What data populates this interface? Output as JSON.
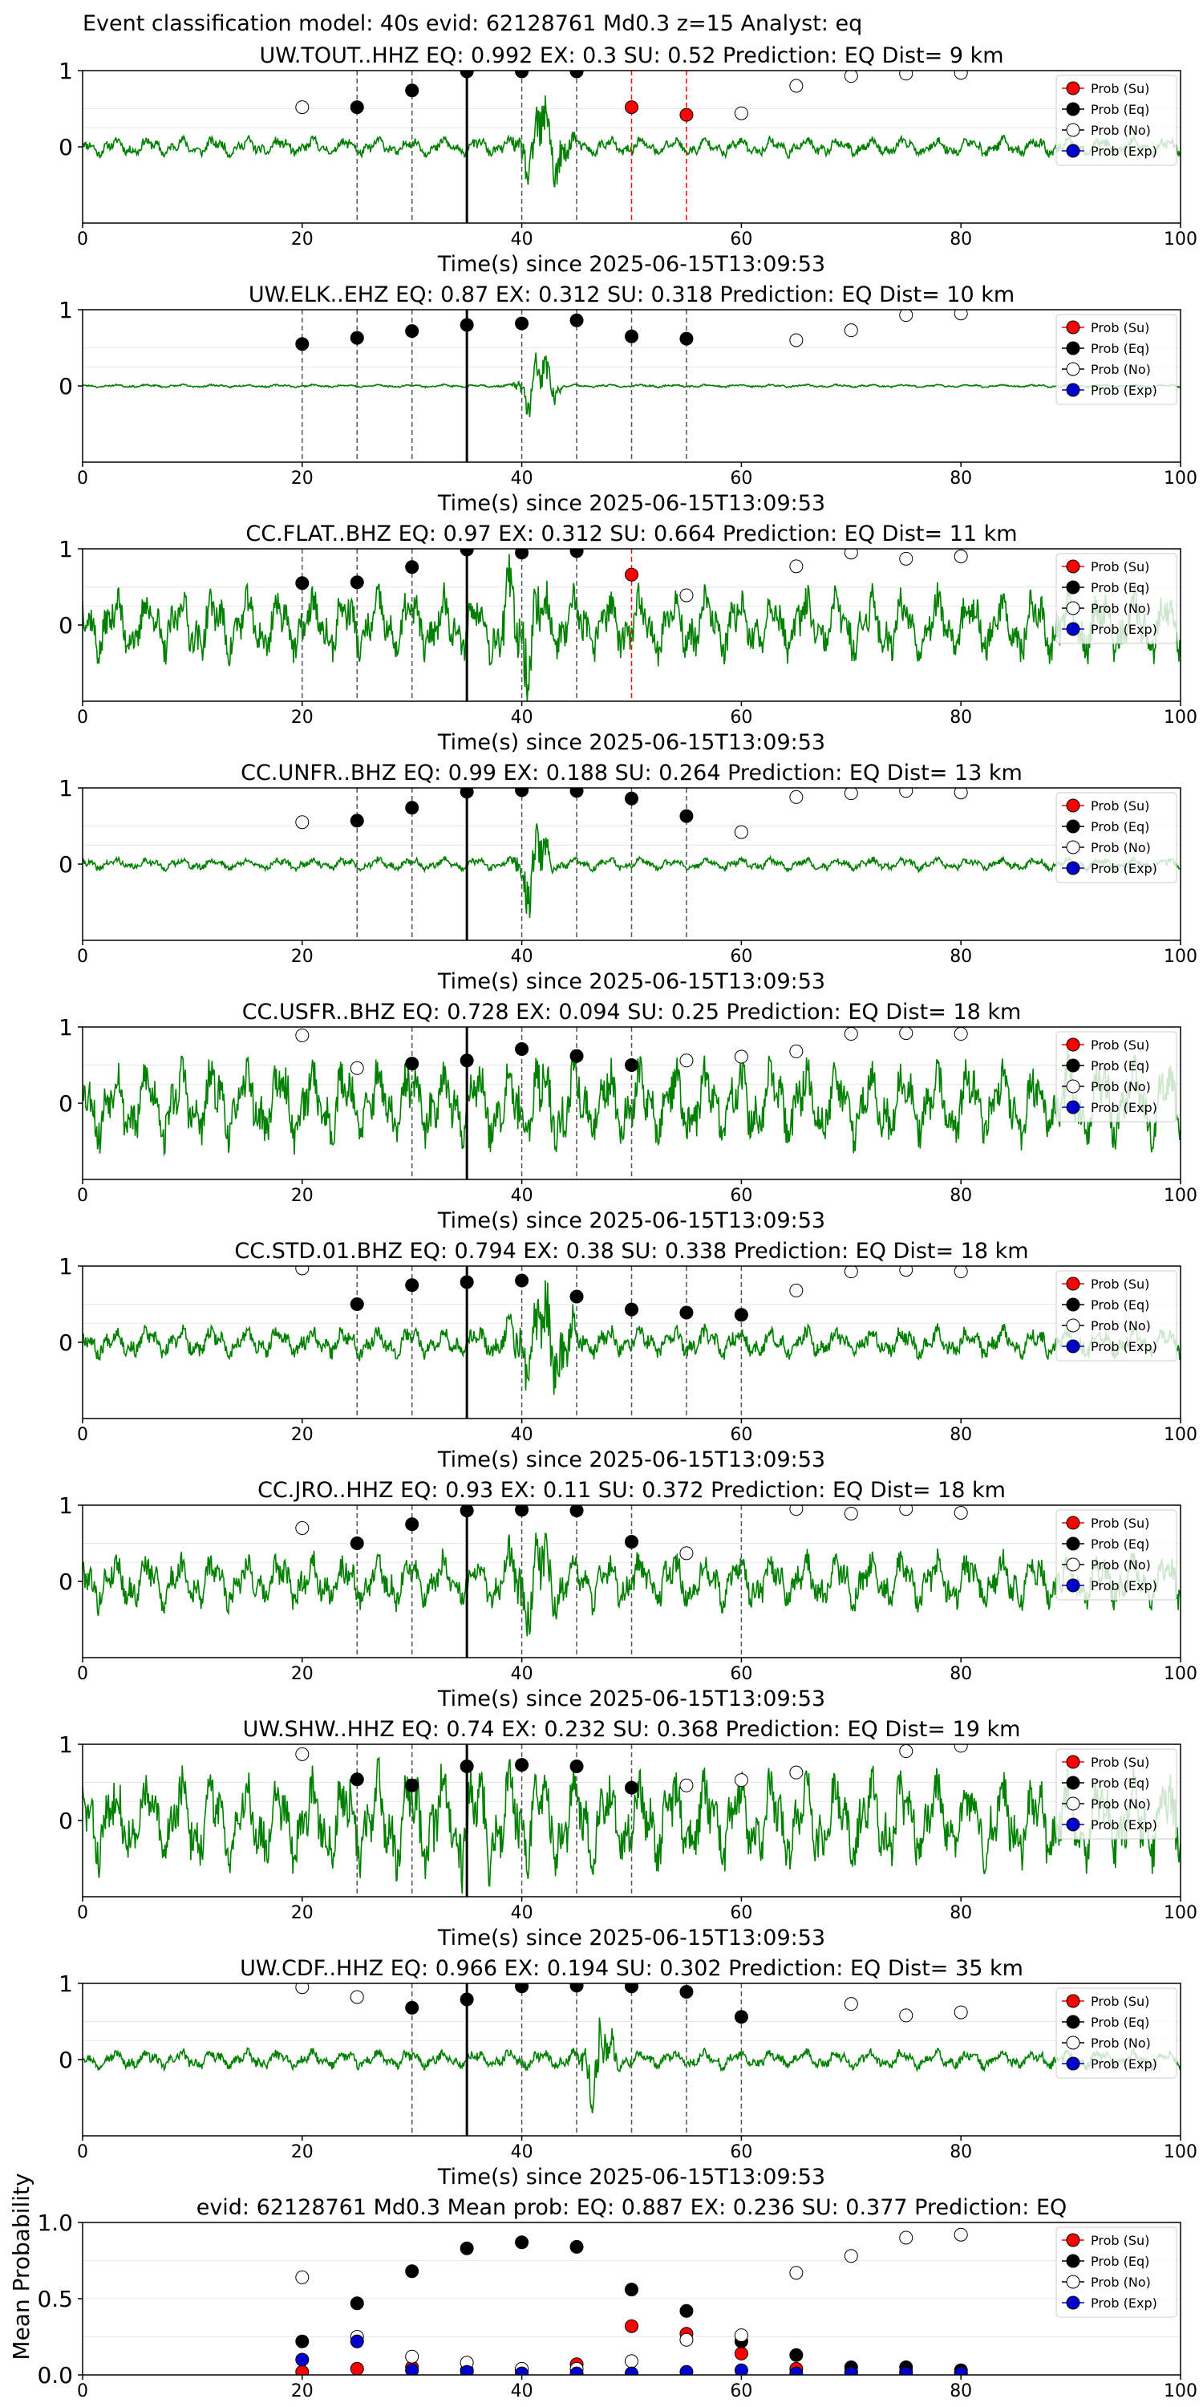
{
  "suptitle": "Event classification model: 40s evid: 62128761 Md0.3 z=15 Analyst: eq",
  "colors": {
    "waveform": "#008000",
    "su": "#ff0000",
    "eq": "#000000",
    "no": "#ffffff",
    "exp": "#0000cc",
    "dashed_gray": "#555555",
    "dashed_red": "#ff0000",
    "pick": "#000000"
  },
  "legend": [
    "Prob (Su)",
    "Prob (Eq)",
    "Prob (No)",
    "Prob (Exp)"
  ],
  "chart_data": [
    {
      "type": "scatter",
      "title": "UW.TOUT..HHZ   EQ: 0.992  EX: 0.3  SU: 0.52   Prediction: EQ    Dist= 9 km",
      "xlabel": "Time(s) since 2025-06-15T13:09:53",
      "xlim": [
        0,
        100
      ],
      "ylim": [
        -1,
        1
      ],
      "xticks": [
        "0",
        "20",
        "40",
        "60",
        "80",
        "100"
      ],
      "yticks": [
        "1",
        "0"
      ],
      "pick_line": 35,
      "vlines_gray": [
        25,
        30,
        40,
        45
      ],
      "vlines_red": [
        50,
        55
      ],
      "waveform": {
        "amp": 0.12,
        "burst_amp": 0.85,
        "burst": [
          39,
          45
        ],
        "seed": 11
      },
      "series": [
        {
          "name": "Prob (Su)",
          "x": [
            50,
            55
          ],
          "y": [
            0.52,
            0.42
          ]
        },
        {
          "name": "Prob (Eq)",
          "x": [
            25,
            30,
            35,
            40,
            45
          ],
          "y": [
            0.52,
            0.74,
            0.99,
            0.99,
            0.99
          ]
        },
        {
          "name": "Prob (No)",
          "x": [
            20,
            60,
            65,
            70,
            75,
            80
          ],
          "y": [
            0.52,
            0.44,
            0.8,
            0.93,
            0.96,
            0.97
          ]
        },
        {
          "name": "Prob (Exp)",
          "x": [],
          "y": []
        }
      ]
    },
    {
      "type": "scatter",
      "title": "UW.ELK..EHZ   EQ: 0.87  EX: 0.312  SU: 0.318   Prediction: EQ    Dist= 10 km",
      "xlabel": "Time(s) since 2025-06-15T13:09:53",
      "xlim": [
        0,
        100
      ],
      "ylim": [
        -1,
        1
      ],
      "xticks": [
        "0",
        "20",
        "40",
        "60",
        "80",
        "100"
      ],
      "yticks": [
        "1",
        "0"
      ],
      "pick_line": 35,
      "vlines_gray": [
        20,
        25,
        30,
        40,
        45,
        50,
        55
      ],
      "vlines_red": [],
      "waveform": {
        "amp": 0.02,
        "burst_amp": 0.6,
        "burst": [
          39,
          44
        ],
        "seed": 23
      },
      "series": [
        {
          "name": "Prob (Su)",
          "x": [],
          "y": []
        },
        {
          "name": "Prob (Eq)",
          "x": [
            20,
            25,
            30,
            35,
            40,
            45,
            50,
            55
          ],
          "y": [
            0.55,
            0.63,
            0.72,
            0.8,
            0.82,
            0.86,
            0.65,
            0.62
          ]
        },
        {
          "name": "Prob (No)",
          "x": [
            65,
            70,
            75,
            80
          ],
          "y": [
            0.6,
            0.73,
            0.93,
            0.95
          ]
        },
        {
          "name": "Prob (Exp)",
          "x": [],
          "y": []
        }
      ]
    },
    {
      "type": "scatter",
      "title": "CC.FLAT..BHZ   EQ: 0.97  EX: 0.312  SU: 0.664   Prediction: EQ    Dist= 11 km",
      "xlabel": "Time(s) since 2025-06-15T13:09:53",
      "xlim": [
        0,
        100
      ],
      "ylim": [
        -1,
        1
      ],
      "xticks": [
        "0",
        "20",
        "40",
        "60",
        "80",
        "100"
      ],
      "yticks": [
        "1",
        "0"
      ],
      "pick_line": 35,
      "vlines_gray": [
        20,
        25,
        30,
        40,
        45
      ],
      "vlines_red": [
        50
      ],
      "waveform": {
        "amp": 0.45,
        "burst_amp": 0.9,
        "burst": [
          37,
          43
        ],
        "seed": 37
      },
      "series": [
        {
          "name": "Prob (Su)",
          "x": [
            50
          ],
          "y": [
            0.66
          ]
        },
        {
          "name": "Prob (Eq)",
          "x": [
            20,
            25,
            30,
            35,
            40,
            45
          ],
          "y": [
            0.55,
            0.56,
            0.76,
            0.99,
            0.95,
            0.97
          ]
        },
        {
          "name": "Prob (No)",
          "x": [
            55,
            65,
            70,
            75,
            80
          ],
          "y": [
            0.39,
            0.77,
            0.95,
            0.87,
            0.9
          ]
        },
        {
          "name": "Prob (Exp)",
          "x": [],
          "y": []
        }
      ]
    },
    {
      "type": "scatter",
      "title": "CC.UNFR..BHZ   EQ: 0.99  EX: 0.188  SU: 0.264   Prediction: EQ    Dist= 13 km",
      "xlabel": "Time(s) since 2025-06-15T13:09:53",
      "xlim": [
        0,
        100
      ],
      "ylim": [
        -1,
        1
      ],
      "xticks": [
        "0",
        "20",
        "40",
        "60",
        "80",
        "100"
      ],
      "yticks": [
        "1",
        "0"
      ],
      "pick_line": 35,
      "vlines_gray": [
        25,
        30,
        40,
        45,
        50,
        55
      ],
      "vlines_red": [],
      "waveform": {
        "amp": 0.08,
        "burst_amp": 0.8,
        "burst": [
          39,
          43
        ],
        "seed": 41
      },
      "series": [
        {
          "name": "Prob (Su)",
          "x": [],
          "y": []
        },
        {
          "name": "Prob (Eq)",
          "x": [
            25,
            30,
            35,
            40,
            45,
            50,
            55
          ],
          "y": [
            0.57,
            0.74,
            0.95,
            0.97,
            0.96,
            0.86,
            0.63
          ]
        },
        {
          "name": "Prob (No)",
          "x": [
            20,
            60,
            65,
            70,
            75,
            80
          ],
          "y": [
            0.55,
            0.42,
            0.88,
            0.93,
            0.96,
            0.94
          ]
        },
        {
          "name": "Prob (Exp)",
          "x": [],
          "y": []
        }
      ]
    },
    {
      "type": "scatter",
      "title": "CC.USFR..BHZ   EQ: 0.728  EX: 0.094  SU: 0.25   Prediction: EQ    Dist= 18 km",
      "xlabel": "Time(s) since 2025-06-15T13:09:53",
      "xlim": [
        0,
        100
      ],
      "ylim": [
        -1,
        1
      ],
      "xticks": [
        "0",
        "20",
        "40",
        "60",
        "80",
        "100"
      ],
      "yticks": [
        "1",
        "0"
      ],
      "pick_line": 35,
      "vlines_gray": [
        30,
        40,
        45,
        50
      ],
      "vlines_red": [],
      "waveform": {
        "amp": 0.55,
        "burst_amp": 0.75,
        "burst": [
          38,
          46
        ],
        "seed": 53
      },
      "series": [
        {
          "name": "Prob (Su)",
          "x": [],
          "y": []
        },
        {
          "name": "Prob (Eq)",
          "x": [
            30,
            35,
            40,
            45,
            50
          ],
          "y": [
            0.52,
            0.56,
            0.71,
            0.62,
            0.5
          ]
        },
        {
          "name": "Prob (No)",
          "x": [
            20,
            25,
            55,
            60,
            65,
            70,
            75,
            80
          ],
          "y": [
            0.89,
            0.46,
            0.56,
            0.61,
            0.68,
            0.91,
            0.92,
            0.91
          ]
        },
        {
          "name": "Prob (Exp)",
          "x": [],
          "y": []
        }
      ]
    },
    {
      "type": "scatter",
      "title": "CC.STD.01.BHZ   EQ: 0.794  EX: 0.38  SU: 0.338   Prediction: EQ    Dist= 18 km",
      "xlabel": "Time(s) since 2025-06-15T13:09:53",
      "xlim": [
        0,
        100
      ],
      "ylim": [
        -1,
        1
      ],
      "xticks": [
        "0",
        "20",
        "40",
        "60",
        "80",
        "100"
      ],
      "yticks": [
        "1",
        "0"
      ],
      "pick_line": 35,
      "vlines_gray": [
        25,
        30,
        40,
        45,
        50,
        55,
        60
      ],
      "vlines_red": [],
      "waveform": {
        "amp": 0.2,
        "burst_amp": 0.85,
        "burst": [
          38,
          46
        ],
        "seed": 67
      },
      "series": [
        {
          "name": "Prob (Su)",
          "x": [],
          "y": []
        },
        {
          "name": "Prob (Eq)",
          "x": [
            25,
            30,
            35,
            40,
            45,
            50,
            55,
            60
          ],
          "y": [
            0.5,
            0.75,
            0.79,
            0.81,
            0.6,
            0.43,
            0.39,
            0.36
          ]
        },
        {
          "name": "Prob (No)",
          "x": [
            20,
            65,
            70,
            75,
            80
          ],
          "y": [
            0.97,
            0.68,
            0.93,
            0.95,
            0.93
          ]
        },
        {
          "name": "Prob (Exp)",
          "x": [],
          "y": []
        }
      ]
    },
    {
      "type": "scatter",
      "title": "CC.JRO..HHZ   EQ: 0.93  EX: 0.11  SU: 0.372   Prediction: EQ    Dist= 18 km",
      "xlabel": "Time(s) since 2025-06-15T13:09:53",
      "xlim": [
        0,
        100
      ],
      "ylim": [
        -1,
        1
      ],
      "xticks": [
        "0",
        "20",
        "40",
        "60",
        "80",
        "100"
      ],
      "yticks": [
        "1",
        "0"
      ],
      "pick_line": 35,
      "vlines_gray": [
        25,
        30,
        40,
        45,
        50,
        60
      ],
      "vlines_red": [],
      "waveform": {
        "amp": 0.35,
        "burst_amp": 0.85,
        "burst": [
          38,
          44
        ],
        "seed": 79
      },
      "series": [
        {
          "name": "Prob (Su)",
          "x": [],
          "y": []
        },
        {
          "name": "Prob (Eq)",
          "x": [
            25,
            30,
            35,
            40,
            45,
            50
          ],
          "y": [
            0.5,
            0.75,
            0.93,
            0.94,
            0.93,
            0.52
          ]
        },
        {
          "name": "Prob (No)",
          "x": [
            20,
            55,
            65,
            70,
            75,
            80
          ],
          "y": [
            0.7,
            0.37,
            0.95,
            0.89,
            0.95,
            0.9
          ]
        },
        {
          "name": "Prob (Exp)",
          "x": [],
          "y": []
        }
      ]
    },
    {
      "type": "scatter",
      "title": "UW.SHW..HHZ   EQ: 0.74  EX: 0.232  SU: 0.368   Prediction: EQ    Dist= 19 km",
      "xlabel": "Time(s) since 2025-06-15T13:09:53",
      "xlim": [
        0,
        100
      ],
      "ylim": [
        -1,
        1
      ],
      "xticks": [
        "0",
        "20",
        "40",
        "60",
        "80",
        "100"
      ],
      "yticks": [
        "1",
        "0"
      ],
      "pick_line": 35,
      "vlines_gray": [
        25,
        30,
        40,
        45,
        50
      ],
      "vlines_red": [],
      "waveform": {
        "amp": 0.6,
        "burst_amp": 0.8,
        "burst": [
          24,
          46
        ],
        "seed": 83
      },
      "series": [
        {
          "name": "Prob (Su)",
          "x": [],
          "y": []
        },
        {
          "name": "Prob (Eq)",
          "x": [
            25,
            30,
            35,
            40,
            45,
            50
          ],
          "y": [
            0.54,
            0.46,
            0.71,
            0.73,
            0.71,
            0.43
          ]
        },
        {
          "name": "Prob (No)",
          "x": [
            20,
            55,
            60,
            65,
            75,
            80
          ],
          "y": [
            0.87,
            0.46,
            0.53,
            0.63,
            0.91,
            0.98
          ]
        },
        {
          "name": "Prob (Exp)",
          "x": [],
          "y": []
        }
      ]
    },
    {
      "type": "scatter",
      "title": "UW.CDF..HHZ   EQ: 0.966  EX: 0.194  SU: 0.302   Prediction: EQ    Dist= 35 km",
      "xlabel": "Time(s) since 2025-06-15T13:09:53",
      "xlim": [
        0,
        100
      ],
      "ylim": [
        -1,
        1
      ],
      "xticks": [
        "0",
        "20",
        "40",
        "60",
        "80",
        "100"
      ],
      "yticks": [
        "1",
        "0"
      ],
      "pick_line": 35,
      "vlines_gray": [
        30,
        40,
        45,
        50,
        55,
        60
      ],
      "vlines_red": [],
      "waveform": {
        "amp": 0.12,
        "burst_amp": 0.85,
        "burst": [
          45,
          49
        ],
        "seed": 97
      },
      "series": [
        {
          "name": "Prob (Su)",
          "x": [],
          "y": []
        },
        {
          "name": "Prob (Eq)",
          "x": [
            30,
            35,
            40,
            45,
            50,
            55,
            60
          ],
          "y": [
            0.68,
            0.79,
            0.96,
            0.97,
            0.96,
            0.89,
            0.56
          ]
        },
        {
          "name": "Prob (No)",
          "x": [
            20,
            25,
            70,
            75,
            80
          ],
          "y": [
            0.95,
            0.82,
            0.73,
            0.58,
            0.62
          ]
        },
        {
          "name": "Prob (Exp)",
          "x": [],
          "y": []
        }
      ]
    },
    {
      "type": "scatter",
      "title": "evid: 62128761  Md0.3   Mean prob:    EQ: 0.887  EX: 0.236  SU: 0.377   Prediction: EQ",
      "ylabel": "Mean Probability",
      "xlim": [
        0,
        100
      ],
      "ylim": [
        0,
        1
      ],
      "xticks": [
        "0",
        "20",
        "40",
        "60",
        "80",
        "100"
      ],
      "yticks": [
        "0.0",
        "0.5",
        "1.0"
      ],
      "series": [
        {
          "name": "Prob (Su)",
          "x": [
            20,
            25,
            30,
            35,
            40,
            45,
            50,
            55,
            60,
            65,
            70,
            75,
            80
          ],
          "y": [
            0.02,
            0.04,
            0.05,
            0.03,
            0.03,
            0.07,
            0.32,
            0.27,
            0.14,
            0.04,
            0.02,
            0.02,
            0.01
          ]
        },
        {
          "name": "Prob (Eq)",
          "x": [
            20,
            25,
            30,
            35,
            40,
            45,
            50,
            55,
            60,
            65,
            70,
            75,
            80
          ],
          "y": [
            0.22,
            0.47,
            0.68,
            0.83,
            0.87,
            0.84,
            0.56,
            0.42,
            0.22,
            0.13,
            0.05,
            0.05,
            0.03
          ]
        },
        {
          "name": "Prob (No)",
          "x": [
            20,
            25,
            30,
            35,
            40,
            45,
            50,
            55,
            60,
            65,
            70,
            75,
            80
          ],
          "y": [
            0.64,
            0.25,
            0.12,
            0.08,
            0.04,
            0.04,
            0.09,
            0.23,
            0.26,
            0.67,
            0.78,
            0.9,
            0.92
          ]
        },
        {
          "name": "Prob (Exp)",
          "x": [
            20,
            25,
            30,
            35,
            40,
            45,
            50,
            55,
            60,
            65,
            70,
            75,
            80
          ],
          "y": [
            0.1,
            0.22,
            0.03,
            0.02,
            0.01,
            0.01,
            0.01,
            0.02,
            0.03,
            0.01,
            0.01,
            0.01,
            0.01
          ]
        }
      ]
    }
  ]
}
